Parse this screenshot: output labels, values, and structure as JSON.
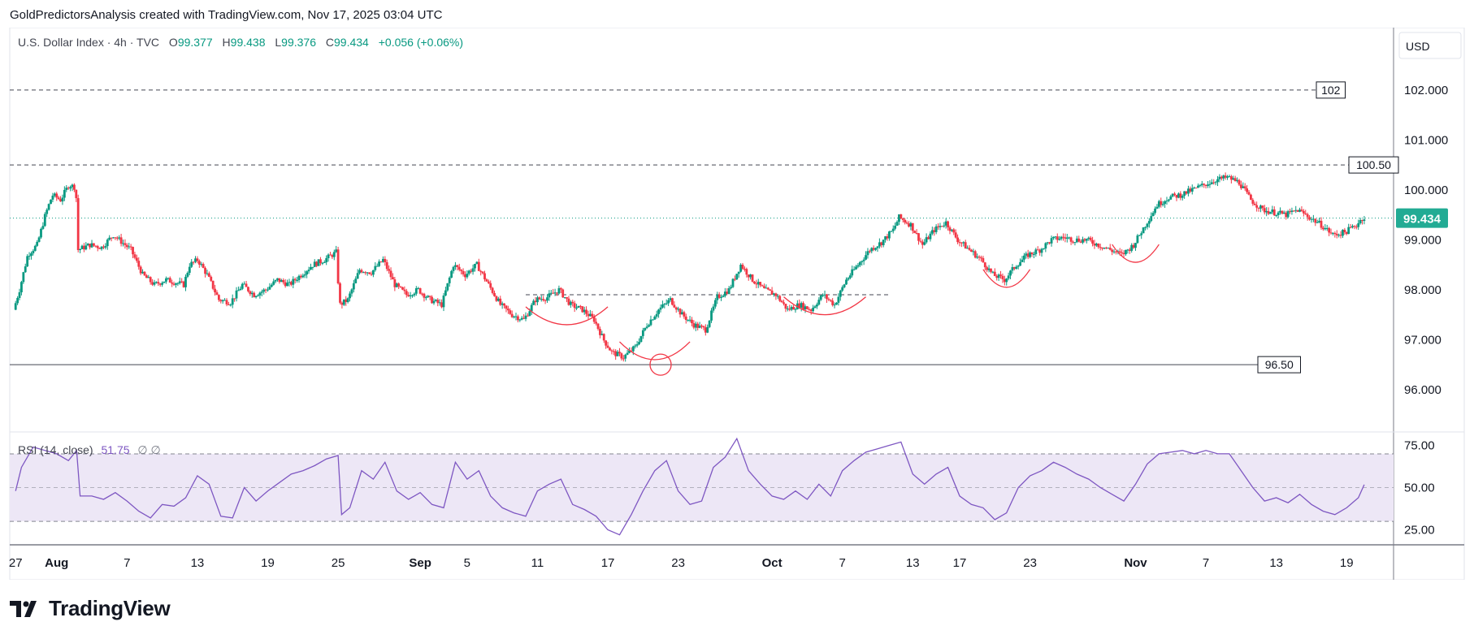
{
  "caption": "GoldPredictorsAnalysis created with TradingView.com, Nov 17, 2025 03:04 UTC",
  "legend": {
    "symbol": "U.S. Dollar Index · 4h · TVC",
    "open_label": "O",
    "open": "99.377",
    "high_label": "H",
    "high": "99.438",
    "low_label": "L",
    "low": "99.376",
    "close_label": "C",
    "close": "99.434",
    "change": "+0.056 (+0.06%)"
  },
  "currency": "USD",
  "last_price": "99.434",
  "brand": "TradingView",
  "colors": {
    "up": "#089981",
    "down": "#f23645",
    "rsi": "#7e57c2",
    "rsi_band": "#ede7f6",
    "pattern": "#f23645",
    "last_price_tag": "#22ab94"
  },
  "chart_data": {
    "type": "candlestick",
    "timeframe": "4h",
    "ylim": [
      95.25,
      103.25
    ],
    "price_ticks": [
      "96.000",
      "97.000",
      "98.000",
      "99.000",
      "100.000",
      "101.000",
      "102.000"
    ],
    "x_ticks": [
      {
        "label": "27",
        "day": -3.5
      },
      {
        "label": "Aug",
        "day": 0
      },
      {
        "label": "7",
        "day": 6
      },
      {
        "label": "13",
        "day": 12
      },
      {
        "label": "19",
        "day": 18
      },
      {
        "label": "25",
        "day": 24
      },
      {
        "label": "Sep",
        "day": 31
      },
      {
        "label": "5",
        "day": 35
      },
      {
        "label": "11",
        "day": 41
      },
      {
        "label": "17",
        "day": 47
      },
      {
        "label": "23",
        "day": 53
      },
      {
        "label": "Oct",
        "day": 61
      },
      {
        "label": "7",
        "day": 67
      },
      {
        "label": "13",
        "day": 73
      },
      {
        "label": "17",
        "day": 77
      },
      {
        "label": "23",
        "day": 83
      },
      {
        "label": "Nov",
        "day": 92
      },
      {
        "label": "7",
        "day": 98
      },
      {
        "label": "13",
        "day": 104
      },
      {
        "label": "19",
        "day": 110
      }
    ],
    "price_path": [
      [
        -3.5,
        97.6
      ],
      [
        -3,
        98.0
      ],
      [
        -2.3,
        98.7
      ],
      [
        -1.5,
        98.9
      ],
      [
        -0.8,
        99.5
      ],
      [
        -0.2,
        99.9
      ],
      [
        0.5,
        99.8
      ],
      [
        1.2,
        100.1
      ],
      [
        1.8,
        100.05
      ],
      [
        2.0,
        98.8
      ],
      [
        3,
        98.9
      ],
      [
        4,
        98.85
      ],
      [
        5,
        99.1
      ],
      [
        6.5,
        98.8
      ],
      [
        7.5,
        98.3
      ],
      [
        8.5,
        98.1
      ],
      [
        9.5,
        98.2
      ],
      [
        11,
        98.1
      ],
      [
        11.5,
        98.5
      ],
      [
        12.2,
        98.6
      ],
      [
        13,
        98.3
      ],
      [
        14,
        97.8
      ],
      [
        15,
        97.75
      ],
      [
        16,
        98.1
      ],
      [
        17,
        97.9
      ],
      [
        18,
        98.0
      ],
      [
        19,
        98.2
      ],
      [
        20,
        98.1
      ],
      [
        21,
        98.3
      ],
      [
        22,
        98.5
      ],
      [
        23,
        98.6
      ],
      [
        24,
        98.75
      ],
      [
        24.3,
        97.7
      ],
      [
        25,
        97.8
      ],
      [
        26,
        98.4
      ],
      [
        27,
        98.35
      ],
      [
        28,
        98.6
      ],
      [
        29,
        98.1
      ],
      [
        30,
        97.9
      ],
      [
        31,
        98.0
      ],
      [
        32,
        97.8
      ],
      [
        33,
        97.7
      ],
      [
        34,
        98.5
      ],
      [
        35,
        98.3
      ],
      [
        36,
        98.5
      ],
      [
        37,
        98.1
      ],
      [
        38,
        97.7
      ],
      [
        39,
        97.5
      ],
      [
        40,
        97.4
      ],
      [
        41,
        97.8
      ],
      [
        42,
        97.85
      ],
      [
        43,
        98.0
      ],
      [
        44,
        97.7
      ],
      [
        45,
        97.6
      ],
      [
        46,
        97.4
      ],
      [
        46.8,
        97.0
      ],
      [
        47.5,
        96.75
      ],
      [
        48.5,
        96.65
      ],
      [
        49.5,
        96.85
      ],
      [
        50.5,
        97.3
      ],
      [
        51.5,
        97.6
      ],
      [
        52.5,
        97.8
      ],
      [
        53.5,
        97.5
      ],
      [
        54.5,
        97.3
      ],
      [
        55.5,
        97.2
      ],
      [
        56.5,
        97.85
      ],
      [
        57.5,
        98.0
      ],
      [
        58.5,
        98.5
      ],
      [
        59.5,
        98.2
      ],
      [
        60.5,
        98.0
      ],
      [
        61.5,
        97.9
      ],
      [
        62.5,
        97.6
      ],
      [
        63.5,
        97.7
      ],
      [
        64.5,
        97.6
      ],
      [
        65.5,
        97.9
      ],
      [
        66.5,
        97.7
      ],
      [
        67.5,
        98.2
      ],
      [
        68.5,
        98.5
      ],
      [
        69.5,
        98.8
      ],
      [
        70.5,
        98.95
      ],
      [
        71.5,
        99.2
      ],
      [
        72,
        99.45
      ],
      [
        73,
        99.3
      ],
      [
        74,
        98.9
      ],
      [
        75,
        99.2
      ],
      [
        76,
        99.35
      ],
      [
        77,
        99.0
      ],
      [
        78,
        98.8
      ],
      [
        79,
        98.6
      ],
      [
        80,
        98.3
      ],
      [
        81,
        98.2
      ],
      [
        82,
        98.5
      ],
      [
        83,
        98.7
      ],
      [
        84,
        98.8
      ],
      [
        85,
        99.0
      ],
      [
        86,
        99.05
      ],
      [
        87,
        99.0
      ],
      [
        88,
        99.0
      ],
      [
        89,
        98.9
      ],
      [
        90,
        98.8
      ],
      [
        91,
        98.7
      ],
      [
        92,
        98.9
      ],
      [
        93,
        99.3
      ],
      [
        94,
        99.7
      ],
      [
        95,
        99.85
      ],
      [
        96,
        99.9
      ],
      [
        97,
        100.0
      ],
      [
        98,
        100.1
      ],
      [
        99,
        100.2
      ],
      [
        100,
        100.25
      ],
      [
        101,
        100.15
      ],
      [
        102,
        99.8
      ],
      [
        103,
        99.6
      ],
      [
        104,
        99.55
      ],
      [
        105,
        99.5
      ],
      [
        106,
        99.6
      ],
      [
        107,
        99.45
      ],
      [
        108,
        99.3
      ],
      [
        109,
        99.1
      ],
      [
        110,
        99.15
      ],
      [
        111,
        99.3
      ],
      [
        111.5,
        99.434
      ]
    ],
    "last_price": 99.434,
    "horizontal_levels": [
      {
        "value": 102,
        "label": "102",
        "style": "dashed"
      },
      {
        "value": 100.5,
        "label": "100.50",
        "style": "dashed"
      },
      {
        "value": 96.5,
        "label": "96.50",
        "style": "solid"
      }
    ],
    "neckline": {
      "value": 97.9,
      "from_day": 40,
      "to_day": 71,
      "style": "dashed"
    },
    "patterns": [
      {
        "shape": "arc",
        "from_day": 40,
        "to_day": 47,
        "bottom": 97.3
      },
      {
        "shape": "arc",
        "from_day": 48,
        "to_day": 54,
        "bottom": 96.6
      },
      {
        "shape": "circle",
        "day": 51.5,
        "value": 96.5
      },
      {
        "shape": "arc",
        "from_day": 62,
        "to_day": 69,
        "bottom": 97.5
      },
      {
        "shape": "arc",
        "from_day": 79,
        "to_day": 83,
        "bottom": 98.05
      },
      {
        "shape": "arc",
        "from_day": 90,
        "to_day": 94,
        "bottom": 98.55
      }
    ],
    "rsi": {
      "name": "RSI (14, close)",
      "value": "51.75",
      "misc": "∅ ∅",
      "ylim": [
        18,
        82
      ],
      "ticks": [
        "25.00",
        "50.00",
        "75.00"
      ],
      "band": [
        30,
        70
      ],
      "path": [
        [
          -3.5,
          48
        ],
        [
          -3,
          62
        ],
        [
          -2,
          74
        ],
        [
          -1,
          72
        ],
        [
          0,
          70
        ],
        [
          1,
          66
        ],
        [
          1.7,
          72
        ],
        [
          2,
          45
        ],
        [
          3,
          45
        ],
        [
          4,
          43
        ],
        [
          5,
          47
        ],
        [
          6,
          42
        ],
        [
          7,
          36
        ],
        [
          8,
          32
        ],
        [
          9,
          40
        ],
        [
          10,
          39
        ],
        [
          11,
          44
        ],
        [
          12,
          57
        ],
        [
          13,
          52
        ],
        [
          14,
          33
        ],
        [
          15,
          32
        ],
        [
          16,
          50
        ],
        [
          17,
          42
        ],
        [
          18,
          48
        ],
        [
          19,
          53
        ],
        [
          20,
          58
        ],
        [
          21,
          60
        ],
        [
          22,
          63
        ],
        [
          23,
          67
        ],
        [
          24,
          69
        ],
        [
          24.3,
          34
        ],
        [
          25,
          38
        ],
        [
          26,
          60
        ],
        [
          27,
          55
        ],
        [
          28,
          65
        ],
        [
          29,
          48
        ],
        [
          30,
          43
        ],
        [
          31,
          47
        ],
        [
          32,
          40
        ],
        [
          33,
          38
        ],
        [
          34,
          65
        ],
        [
          35,
          55
        ],
        [
          36,
          60
        ],
        [
          37,
          45
        ],
        [
          38,
          38
        ],
        [
          39,
          35
        ],
        [
          40,
          33
        ],
        [
          41,
          48
        ],
        [
          42,
          52
        ],
        [
          43,
          55
        ],
        [
          44,
          40
        ],
        [
          45,
          37
        ],
        [
          46,
          33
        ],
        [
          47,
          25
        ],
        [
          48,
          22
        ],
        [
          49,
          34
        ],
        [
          50,
          48
        ],
        [
          51,
          60
        ],
        [
          52,
          66
        ],
        [
          53,
          48
        ],
        [
          54,
          40
        ],
        [
          55,
          42
        ],
        [
          56,
          62
        ],
        [
          57,
          68
        ],
        [
          58,
          79
        ],
        [
          59,
          60
        ],
        [
          60,
          52
        ],
        [
          61,
          45
        ],
        [
          62,
          43
        ],
        [
          63,
          48
        ],
        [
          64,
          43
        ],
        [
          65,
          52
        ],
        [
          66,
          45
        ],
        [
          67,
          60
        ],
        [
          68,
          66
        ],
        [
          69,
          71
        ],
        [
          70,
          73
        ],
        [
          71,
          75
        ],
        [
          72,
          77
        ],
        [
          73,
          58
        ],
        [
          74,
          52
        ],
        [
          75,
          58
        ],
        [
          76,
          62
        ],
        [
          77,
          45
        ],
        [
          78,
          40
        ],
        [
          79,
          38
        ],
        [
          80,
          31
        ],
        [
          81,
          35
        ],
        [
          82,
          50
        ],
        [
          83,
          57
        ],
        [
          84,
          60
        ],
        [
          85,
          65
        ],
        [
          86,
          62
        ],
        [
          87,
          58
        ],
        [
          88,
          55
        ],
        [
          89,
          50
        ],
        [
          90,
          46
        ],
        [
          91,
          42
        ],
        [
          92,
          52
        ],
        [
          93,
          64
        ],
        [
          94,
          70
        ],
        [
          95,
          71
        ],
        [
          96,
          72
        ],
        [
          97,
          70
        ],
        [
          98,
          72
        ],
        [
          99,
          70
        ],
        [
          100,
          70
        ],
        [
          101,
          60
        ],
        [
          102,
          50
        ],
        [
          103,
          42
        ],
        [
          104,
          44
        ],
        [
          105,
          41
        ],
        [
          106,
          46
        ],
        [
          107,
          40
        ],
        [
          108,
          36
        ],
        [
          109,
          34
        ],
        [
          110,
          38
        ],
        [
          111,
          44
        ],
        [
          111.5,
          51.75
        ]
      ]
    }
  }
}
